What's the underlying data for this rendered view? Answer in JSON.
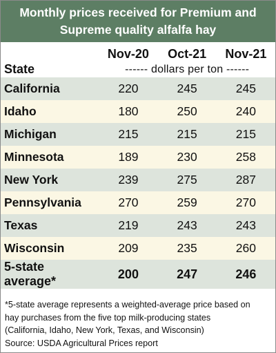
{
  "chart_data": {
    "type": "table",
    "title_lines": [
      "Monthly prices received for Premium and",
      "Supreme quality alfalfa hay"
    ],
    "columns": [
      "Nov-20",
      "Oct-21",
      "Nov-21"
    ],
    "row_header": "State",
    "unit": "------ dollars per ton ------",
    "rows": [
      {
        "state": "California",
        "values": [
          220,
          245,
          245
        ]
      },
      {
        "state": "Idaho",
        "values": [
          180,
          250,
          240
        ]
      },
      {
        "state": "Michigan",
        "values": [
          215,
          215,
          215
        ]
      },
      {
        "state": "Minnesota",
        "values": [
          189,
          230,
          258
        ]
      },
      {
        "state": "New York",
        "values": [
          239,
          275,
          287
        ]
      },
      {
        "state": "Pennsylvania",
        "values": [
          270,
          259,
          270
        ]
      },
      {
        "state": "Texas",
        "values": [
          219,
          243,
          243
        ]
      },
      {
        "state": "Wisconsin",
        "values": [
          209,
          235,
          260
        ]
      }
    ],
    "average": {
      "label": "5-state average*",
      "values": [
        200,
        247,
        246
      ]
    },
    "footnote_lines": [
      "*5-state average represents  a weighted-average price based on",
      "hay purchases from the five top milk-producing states",
      "(California, Idaho, New York, Texas, and Wisconsin)",
      "Source: USDA Agricultural Prices report"
    ]
  },
  "colors": {
    "title_bg": "#5d7e64",
    "row_shade": "#dde4dc",
    "row_light": "#fbf7e4"
  }
}
